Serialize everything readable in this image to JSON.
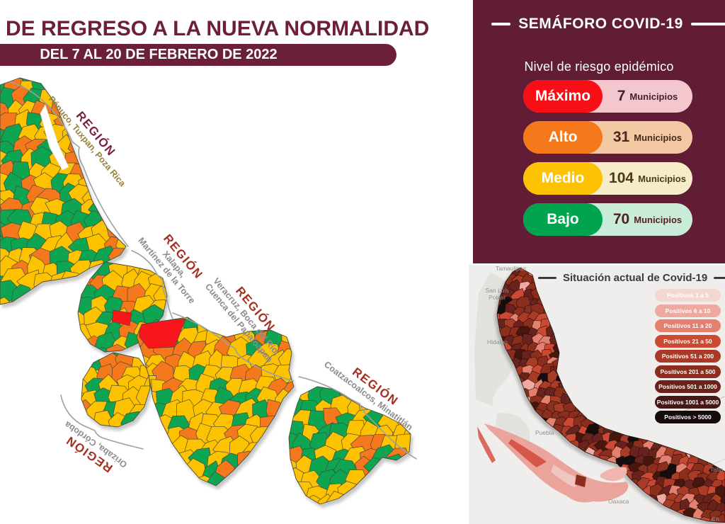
{
  "header": {
    "title": "DE REGRESO A LA NUEVA NORMALIDAD",
    "subtitle": "DEL 7 AL 20 DE FEBRERO DE 2022"
  },
  "semaforo": {
    "title": "SEMÁFORO COVID-19",
    "subtitle": "Nivel de riesgo epidémico",
    "panel_bg": "#611d36",
    "levels": [
      {
        "label": "Máximo",
        "count": "7",
        "unit": "Municipios",
        "pill_color": "#f80f16",
        "row_bg": "#f3c7cd",
        "count_color": "#43222e"
      },
      {
        "label": "Alto",
        "count": "31",
        "unit": "Municipios",
        "pill_color": "#f5781b",
        "row_bg": "#f3c9a3",
        "count_color": "#46291b"
      },
      {
        "label": "Medio",
        "count": "104",
        "unit": "Municipios",
        "pill_color": "#fdc302",
        "row_bg": "#f6ecca",
        "count_color": "#4a3c12"
      },
      {
        "label": "Bajo",
        "count": "70",
        "unit": "Municipios",
        "pill_color": "#00a44f",
        "row_bg": "#c9ecd9",
        "count_color": "#521e24"
      }
    ]
  },
  "map": {
    "colors": {
      "red": "#f8141a",
      "orange": "#f5781b",
      "yellow": "#fdc302",
      "green": "#0aa551"
    },
    "regions": [
      {
        "title": "REGIÓN",
        "cities": "Pánuco, Tuxpan, Poza Rica",
        "title_color": "#7a2040",
        "cities_color": "#97823a"
      },
      {
        "title": "REGIÓN",
        "cities": "Xalapa,\nMartínez de la Torre",
        "title_color": "#a5301f",
        "cities_color": "#8c8c8c"
      },
      {
        "title": "REGIÓN",
        "cities": "Veracruz, Boca del Río,\nCuenca del Papaloapan",
        "title_color": "#a5301f",
        "cities_color": "#8c8c8c"
      },
      {
        "title": "REGIÓN",
        "cities": "Coatzacoalcos, Minatitlán",
        "title_color": "#a5301f",
        "cities_color": "#8c8c8c"
      },
      {
        "title": "REGIÓN",
        "cities": "Orizaba, Córdoba",
        "title_color": "#a5301f",
        "cities_color": "#8c8c8c"
      }
    ]
  },
  "situacion": {
    "title": "Situación actual de Covid-19",
    "legend": [
      {
        "label": "Positivos 1 a 5",
        "color": "#f5d7d2"
      },
      {
        "label": "Positivos 6 a 10",
        "color": "#efa9a0"
      },
      {
        "label": "Positivos 11 a 20",
        "color": "#e57f6e"
      },
      {
        "label": "Positivos 21 a 50",
        "color": "#cb4a31"
      },
      {
        "label": "Positivos 51 a 200",
        "color": "#aa3a27"
      },
      {
        "label": "Positivos 201 a 500",
        "color": "#8c2d1e"
      },
      {
        "label": "Positivos 501 a 1000",
        "color": "#6b221a"
      },
      {
        "label": "Positivos 1001 a 5000",
        "color": "#471713"
      },
      {
        "label": "Positivos > 5000",
        "color": "#160c0a"
      }
    ],
    "states": [
      {
        "label": "Tamaulipas"
      },
      {
        "label": "San Luis\nPotosí"
      },
      {
        "label": "Hidalgo"
      },
      {
        "label": "Puebla"
      },
      {
        "label": "Oaxaca"
      },
      {
        "label": "Taba"
      },
      {
        "label": "Ch"
      }
    ]
  }
}
